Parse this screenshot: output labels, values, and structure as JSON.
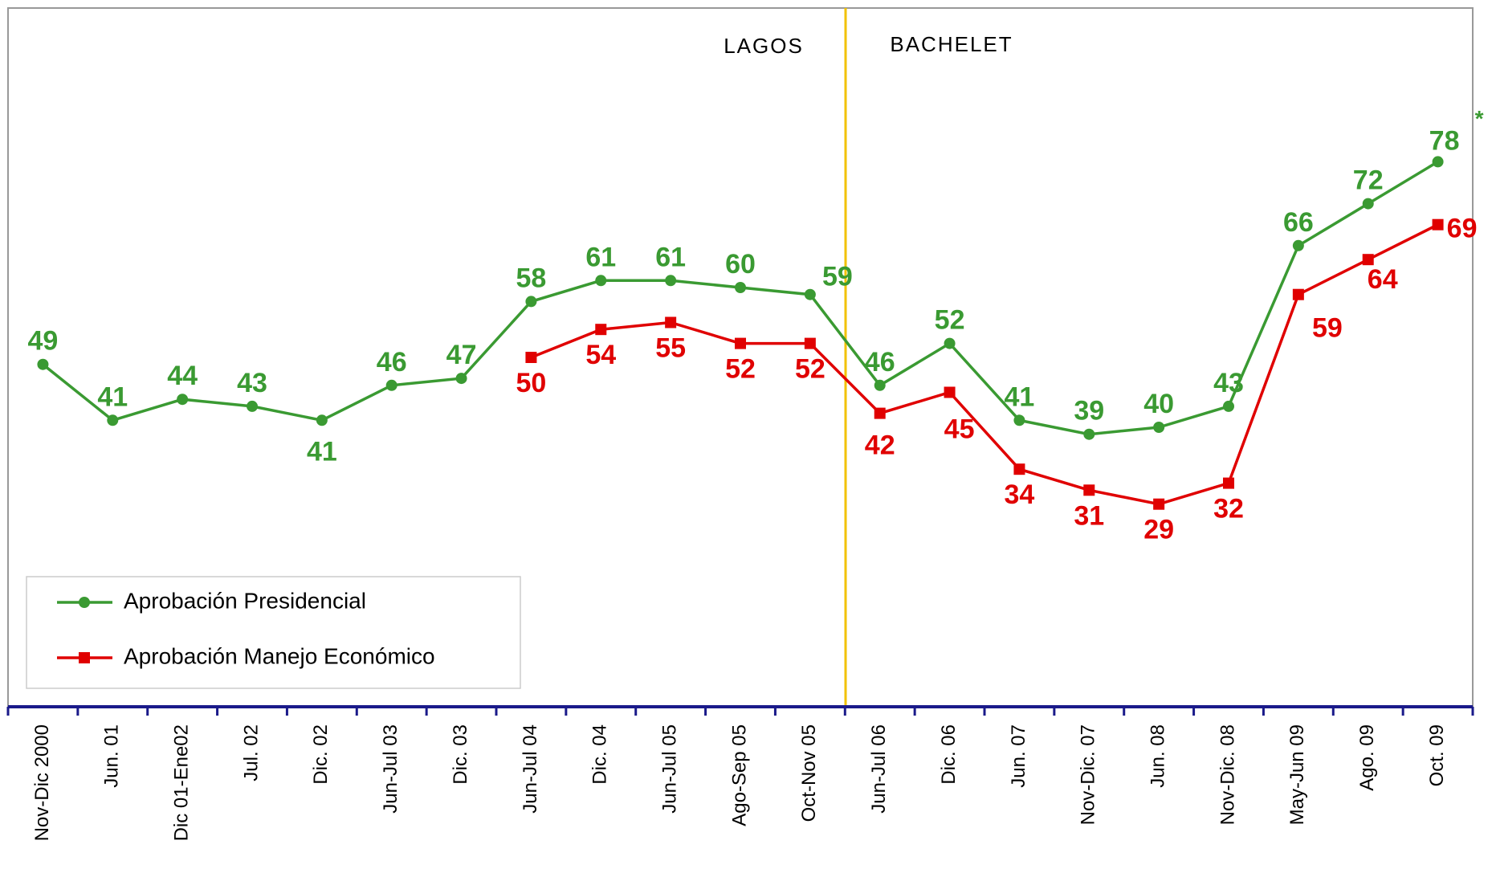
{
  "chart_data": {
    "type": "line",
    "categories": [
      "Nov-Dic 2000",
      "Jun. 01",
      "Dic 01-Ene02",
      "Jul. 02",
      "Dic. 02",
      "Jun-Jul 03",
      "Dic. 03",
      "Jun-Jul 04",
      "Dic. 04",
      "Jun-Jul 05",
      "Ago-Sep 05",
      "Oct-Nov 05",
      "Jun-Jul 06",
      "Dic. 06",
      "Jun. 07",
      "Nov-Dic. 07",
      "Jun. 08",
      "Nov-Dic. 08",
      "May-Jun 09",
      "Ago. 09",
      "Oct. 09"
    ],
    "series": [
      {
        "name": "Aprobación Presidencial",
        "color": "#3a9a32",
        "marker": "circle",
        "values": [
          49,
          41,
          44,
          43,
          41,
          46,
          47,
          58,
          61,
          61,
          60,
          59,
          46,
          52,
          41,
          39,
          40,
          43,
          66,
          72,
          78
        ]
      },
      {
        "name": "Aprobación Manejo Económico",
        "color": "#e00000",
        "marker": "square",
        "values": [
          null,
          null,
          null,
          null,
          null,
          null,
          null,
          50,
          54,
          55,
          52,
          52,
          42,
          45,
          34,
          31,
          29,
          32,
          59,
          64,
          69
        ]
      }
    ],
    "ylim": [
      0,
      100
    ],
    "annotations": [
      "LAGOS",
      "BACHELET"
    ],
    "last_point_note": "*",
    "legend": "bottom-left"
  }
}
